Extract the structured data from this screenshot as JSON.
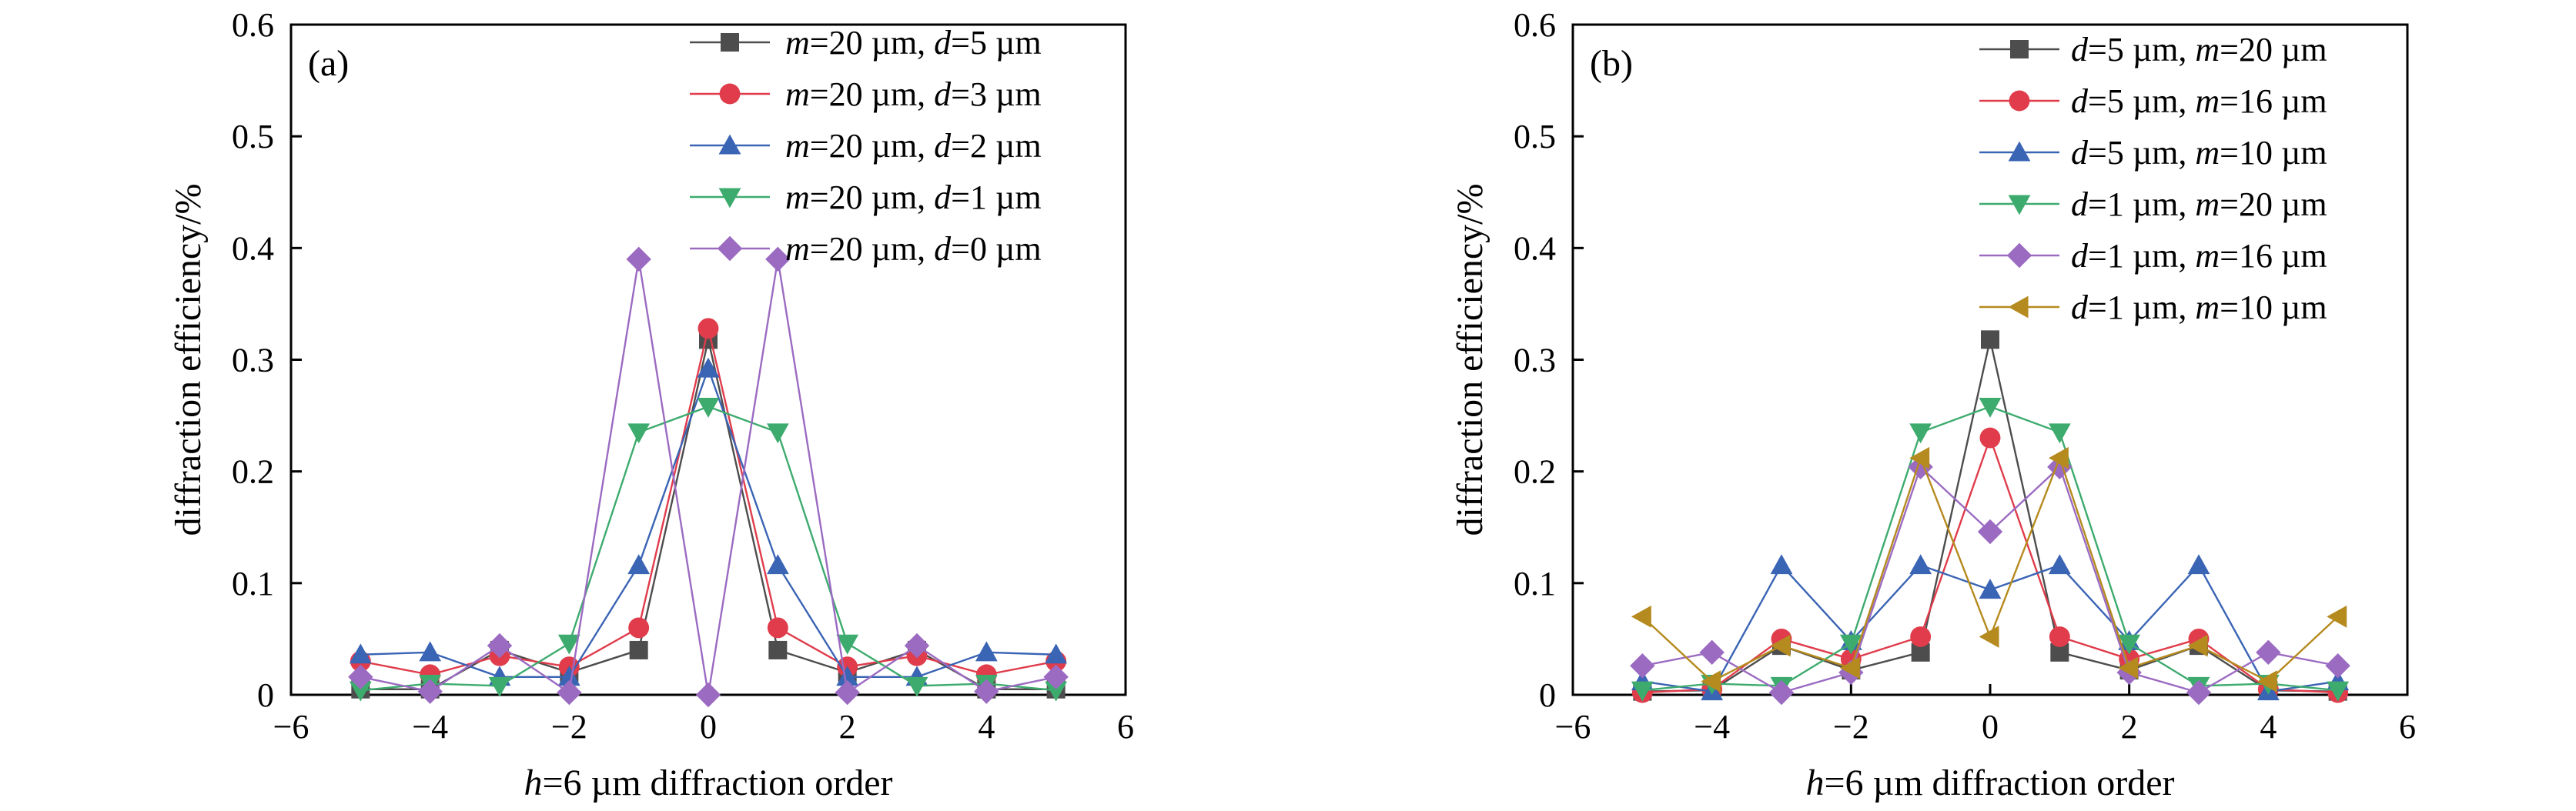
{
  "chart_data": [
    {
      "type": "line",
      "panel_label": "(a)",
      "xlabel_var": "h",
      "xlabel_rest": "=6 µm diffraction order",
      "ylabel": "diffraction efficiency/%",
      "xlim": [
        -6,
        6
      ],
      "ylim": [
        0,
        0.6
      ],
      "xticks": [
        -6,
        -4,
        -2,
        0,
        2,
        4,
        6
      ],
      "yticks": [
        0,
        0.1,
        0.2,
        0.3,
        0.4,
        0.5,
        0.6
      ],
      "ytick_labels": [
        "0",
        "0.1",
        "0.2",
        "0.3",
        "0.4",
        "0.5",
        "0.6"
      ],
      "legend_position": "top-right",
      "x": [
        -5,
        -4,
        -3,
        -2,
        -1,
        0,
        1,
        2,
        3,
        4,
        5
      ],
      "series": [
        {
          "name": "m=20 µm, d=5 µm",
          "label_parts": [
            [
              "m",
              true
            ],
            [
              "=20 µm, ",
              false
            ],
            [
              "d",
              true
            ],
            [
              "=5 µm",
              false
            ]
          ],
          "color": "#4d4d4d",
          "marker": "square",
          "values": [
            0.005,
            0.005,
            0.04,
            0.02,
            0.04,
            0.318,
            0.04,
            0.02,
            0.04,
            0.005,
            0.005
          ]
        },
        {
          "name": "m=20 µm, d=3 µm",
          "label_parts": [
            [
              "m",
              true
            ],
            [
              "=20 µm, ",
              false
            ],
            [
              "d",
              true
            ],
            [
              "=3 µm",
              false
            ]
          ],
          "color": "#e03c4b",
          "marker": "circle",
          "values": [
            0.03,
            0.018,
            0.035,
            0.025,
            0.06,
            0.328,
            0.06,
            0.025,
            0.035,
            0.018,
            0.03
          ]
        },
        {
          "name": "m=20 µm, d=2 µm",
          "label_parts": [
            [
              "m",
              true
            ],
            [
              "=20 µm, ",
              false
            ],
            [
              "d",
              true
            ],
            [
              "=2 µm",
              false
            ]
          ],
          "color": "#3a64b4",
          "marker": "triangle-up",
          "values": [
            0.036,
            0.038,
            0.016,
            0.016,
            0.116,
            0.292,
            0.116,
            0.016,
            0.016,
            0.038,
            0.036
          ]
        },
        {
          "name": "m=20 µm, d=1 µm",
          "label_parts": [
            [
              "m",
              true
            ],
            [
              "=20 µm, ",
              false
            ],
            [
              "d",
              true
            ],
            [
              "=1 µm",
              false
            ]
          ],
          "color": "#3eab6e",
          "marker": "triangle-down",
          "values": [
            0.004,
            0.01,
            0.008,
            0.046,
            0.235,
            0.258,
            0.235,
            0.046,
            0.008,
            0.01,
            0.004
          ]
        },
        {
          "name": "m=20 µm, d=0 µm",
          "label_parts": [
            [
              "m",
              true
            ],
            [
              "=20 µm, ",
              false
            ],
            [
              "d",
              true
            ],
            [
              "=0 µm",
              false
            ]
          ],
          "color": "#9b6bc2",
          "marker": "diamond",
          "values": [
            0.016,
            0.003,
            0.044,
            0.002,
            0.39,
            0.0,
            0.39,
            0.002,
            0.044,
            0.003,
            0.016
          ]
        }
      ]
    },
    {
      "type": "line",
      "panel_label": "(b)",
      "xlabel_var": "h",
      "xlabel_rest": "=6 µm diffraction order",
      "ylabel": "diffraction efficiency/%",
      "xlim": [
        -6,
        6
      ],
      "ylim": [
        0,
        0.6
      ],
      "xticks": [
        -6,
        -4,
        -2,
        0,
        2,
        4,
        6
      ],
      "yticks": [
        0,
        0.1,
        0.2,
        0.3,
        0.4,
        0.5,
        0.6
      ],
      "ytick_labels": [
        "0",
        "0.1",
        "0.2",
        "0.3",
        "0.4",
        "0.5",
        "0.6"
      ],
      "legend_position": "top-right",
      "x": [
        -5,
        -4,
        -3,
        -2,
        -1,
        0,
        1,
        2,
        3,
        4,
        5
      ],
      "series": [
        {
          "name": "d=5 µm, m=20 µm",
          "label_parts": [
            [
              "d",
              true
            ],
            [
              "=5 µm, ",
              false
            ],
            [
              "m",
              true
            ],
            [
              "=20 µm",
              false
            ]
          ],
          "color": "#4d4d4d",
          "marker": "square",
          "values": [
            0.003,
            0.004,
            0.044,
            0.022,
            0.038,
            0.318,
            0.038,
            0.022,
            0.044,
            0.004,
            0.003
          ]
        },
        {
          "name": "d=5 µm, m=16 µm",
          "label_parts": [
            [
              "d",
              true
            ],
            [
              "=5 µm, ",
              false
            ],
            [
              "m",
              true
            ],
            [
              "=16 µm",
              false
            ]
          ],
          "color": "#e03c4b",
          "marker": "circle",
          "values": [
            0.002,
            0.005,
            0.05,
            0.032,
            0.052,
            0.23,
            0.052,
            0.032,
            0.05,
            0.005,
            0.002
          ]
        },
        {
          "name": "d=5 µm, m=10 µm",
          "label_parts": [
            [
              "d",
              true
            ],
            [
              "=5 µm, ",
              false
            ],
            [
              "m",
              true
            ],
            [
              "=10 µm",
              false
            ]
          ],
          "color": "#3a64b4",
          "marker": "triangle-up",
          "values": [
            0.012,
            0.003,
            0.116,
            0.048,
            0.116,
            0.094,
            0.116,
            0.048,
            0.116,
            0.003,
            0.012
          ]
        },
        {
          "name": "d=1 µm, m=20 µm",
          "label_parts": [
            [
              "d",
              true
            ],
            [
              "=1 µm, ",
              false
            ],
            [
              "m",
              true
            ],
            [
              "=20 µm",
              false
            ]
          ],
          "color": "#3eab6e",
          "marker": "triangle-down",
          "values": [
            0.004,
            0.01,
            0.008,
            0.046,
            0.235,
            0.258,
            0.235,
            0.046,
            0.008,
            0.01,
            0.004
          ]
        },
        {
          "name": "d=1 µm, m=16 µm",
          "label_parts": [
            [
              "d",
              true
            ],
            [
              "=1 µm, ",
              false
            ],
            [
              "m",
              true
            ],
            [
              "=16 µm",
              false
            ]
          ],
          "color": "#9b6bc2",
          "marker": "diamond",
          "values": [
            0.026,
            0.038,
            0.002,
            0.02,
            0.204,
            0.146,
            0.204,
            0.02,
            0.002,
            0.038,
            0.026
          ]
        },
        {
          "name": "d=1 µm, m=10 µm",
          "label_parts": [
            [
              "d",
              true
            ],
            [
              "=1 µm, ",
              false
            ],
            [
              "m",
              true
            ],
            [
              "=10 µm",
              false
            ]
          ],
          "color": "#b58a1e",
          "marker": "triangle-left",
          "values": [
            0.07,
            0.012,
            0.044,
            0.024,
            0.212,
            0.052,
            0.212,
            0.024,
            0.044,
            0.012,
            0.07
          ]
        }
      ]
    }
  ]
}
